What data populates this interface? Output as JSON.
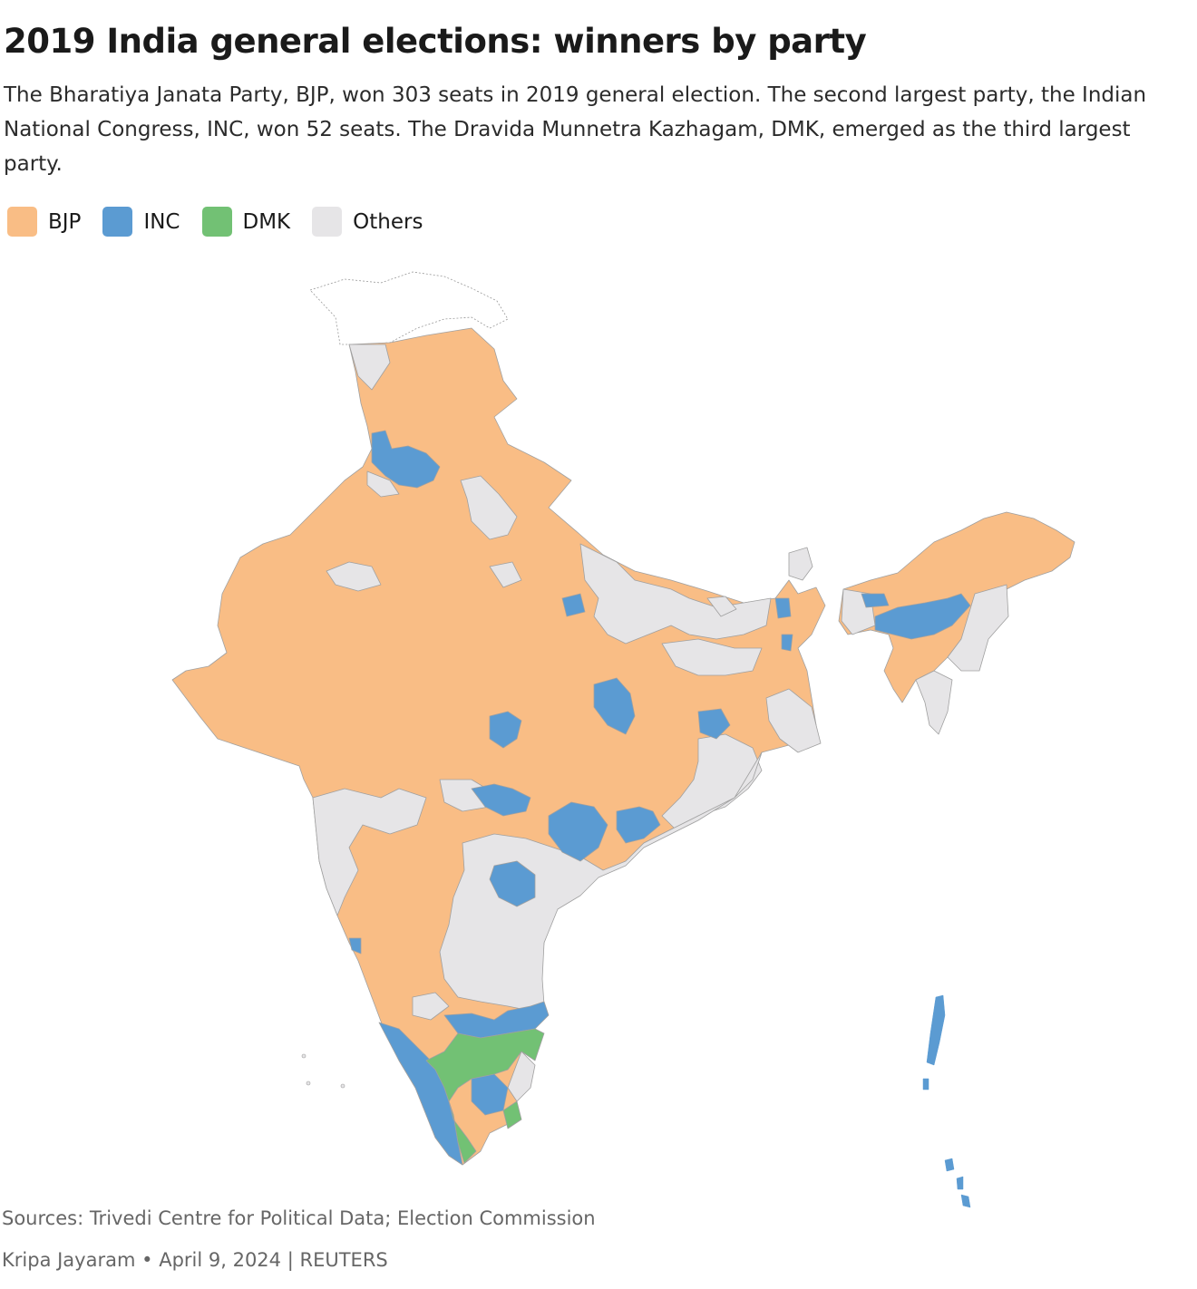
{
  "title": "2019 India general elections: winners by party",
  "subtitle": "The Bharatiya Janata Party, BJP, won 303 seats in 2019 general election. The second largest party, the Indian National Congress, INC, won 52 seats. The Dravida Munnetra Kazhagam, DMK, emerged as the third largest party.",
  "legend": [
    {
      "label": "BJP",
      "color": "#f9bd85"
    },
    {
      "label": "INC",
      "color": "#5b9bd2"
    },
    {
      "label": "DMK",
      "color": "#72c174"
    },
    {
      "label": "Others",
      "color": "#e6e5e7"
    }
  ],
  "colors": {
    "bjp": "#f9bd85",
    "inc": "#5b9bd2",
    "dmk": "#72c174",
    "others": "#e6e5e7",
    "outline": "#8a8a8a"
  },
  "footer": {
    "sources": "Sources: Trivedi Centre for Political Data; Election Commission",
    "author": "Kripa Jayaram",
    "date": "April 9, 2024",
    "publisher": "REUTERS"
  }
}
